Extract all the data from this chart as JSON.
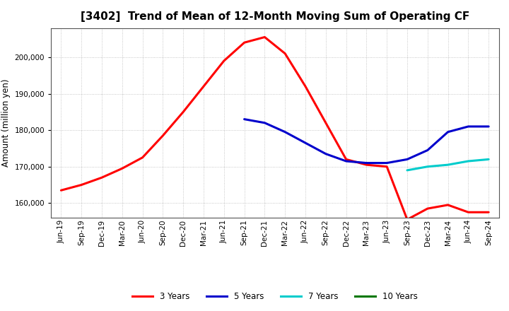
{
  "title": "[3402]  Trend of Mean of 12-Month Moving Sum of Operating CF",
  "ylabel": "Amount (million yen)",
  "background_color": "#ffffff",
  "plot_bg_color": "#ffffff",
  "grid_color": "#999999",
  "ylim": [
    156000,
    208000
  ],
  "yticks": [
    160000,
    170000,
    180000,
    190000,
    200000
  ],
  "x_labels": [
    "Jun-19",
    "Sep-19",
    "Dec-19",
    "Mar-20",
    "Jun-20",
    "Sep-20",
    "Dec-20",
    "Mar-21",
    "Jun-21",
    "Sep-21",
    "Dec-21",
    "Mar-22",
    "Jun-22",
    "Sep-22",
    "Dec-22",
    "Mar-23",
    "Jun-23",
    "Sep-23",
    "Dec-23",
    "Mar-24",
    "Jun-24",
    "Sep-24"
  ],
  "series_3y": [
    163500,
    165000,
    167000,
    169500,
    172500,
    178500,
    185000,
    192000,
    199000,
    204000,
    205500,
    201000,
    192000,
    182000,
    172000,
    170500,
    170000,
    155500,
    158500,
    159500,
    157500,
    157500
  ],
  "series_5y": [
    null,
    null,
    null,
    null,
    null,
    null,
    null,
    null,
    null,
    183000,
    182000,
    179500,
    176500,
    173500,
    171500,
    171000,
    171000,
    172000,
    174500,
    179500,
    181000,
    181000
  ],
  "series_7y": [
    null,
    null,
    null,
    null,
    null,
    null,
    null,
    null,
    null,
    null,
    null,
    null,
    null,
    null,
    null,
    null,
    null,
    169000,
    170000,
    170500,
    171500,
    172000
  ],
  "series_10y": [
    null,
    null,
    null,
    null,
    null,
    null,
    null,
    null,
    null,
    null,
    null,
    null,
    null,
    null,
    null,
    null,
    null,
    null,
    null,
    null,
    null,
    null
  ],
  "color_3y": "#ff0000",
  "color_5y": "#0000cc",
  "color_7y": "#00cccc",
  "color_10y": "#007700",
  "linewidth": 2.2,
  "title_fontsize": 11,
  "label_fontsize": 8.5,
  "tick_fontsize": 7.5
}
